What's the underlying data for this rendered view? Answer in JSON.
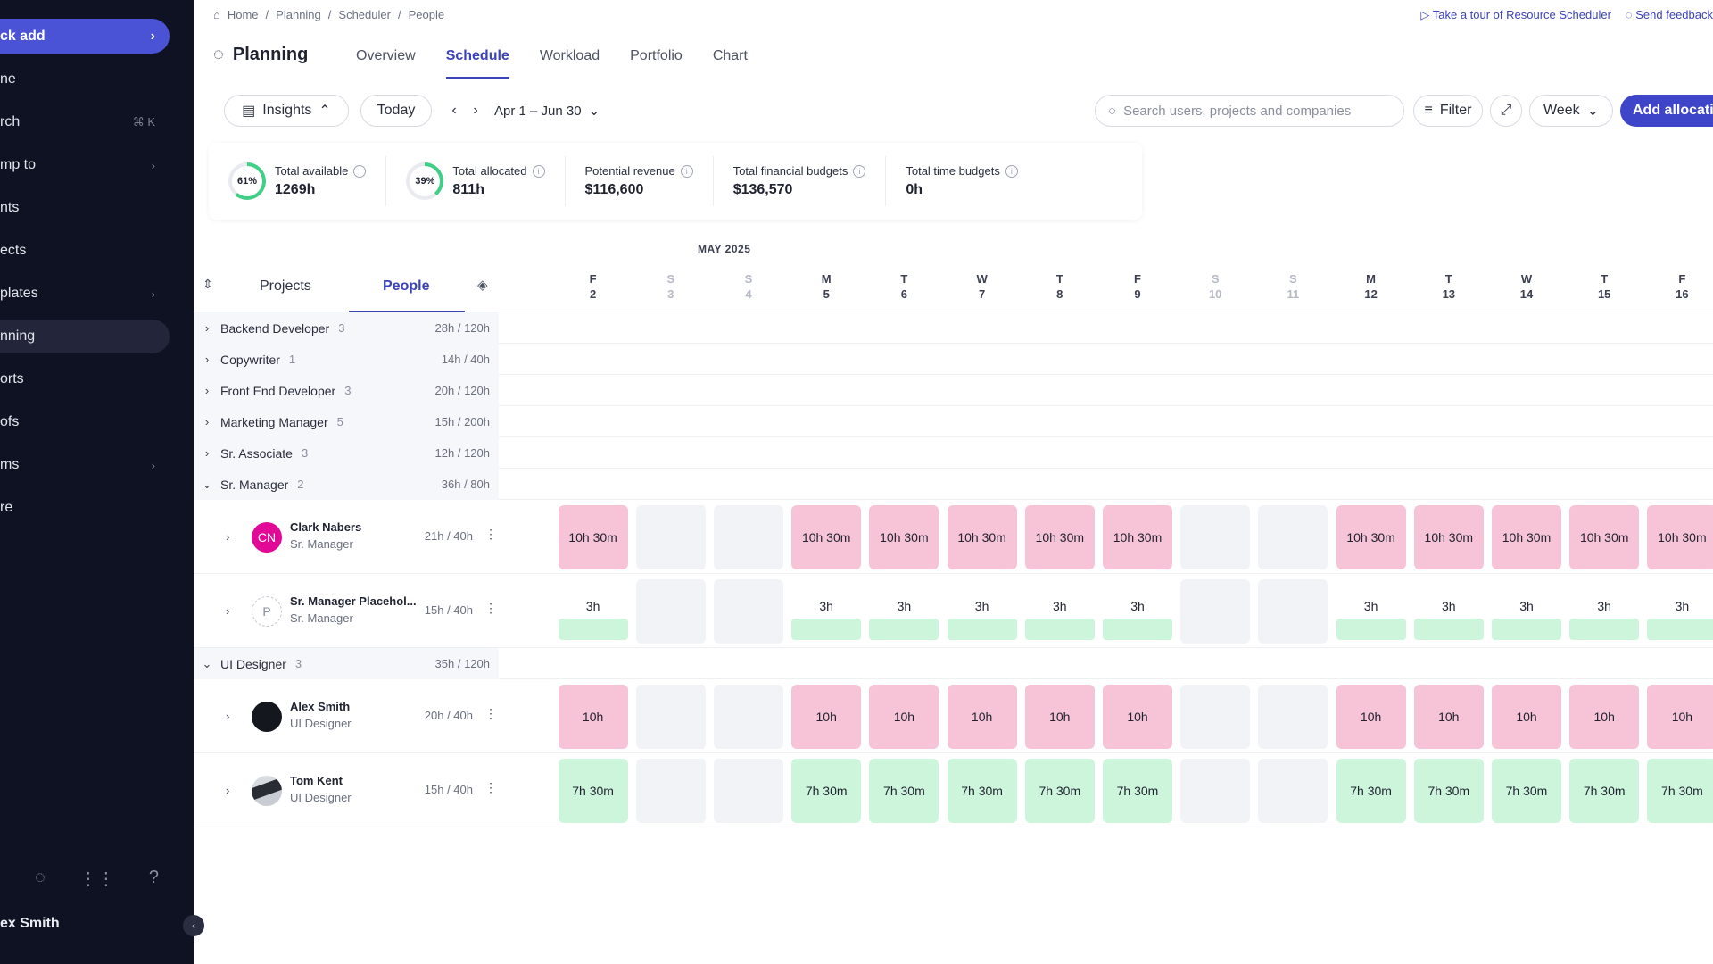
{
  "sidebar": {
    "quick_add": "ck add",
    "items": [
      {
        "label": "ne",
        "meta": ""
      },
      {
        "label": "rch",
        "meta": "⌘ K"
      },
      {
        "label": "mp to",
        "meta": "›"
      },
      {
        "label": "nts",
        "meta": ""
      },
      {
        "label": "ects",
        "meta": ""
      },
      {
        "label": "plates",
        "meta": "›"
      },
      {
        "label": "nning",
        "meta": "",
        "active": true
      },
      {
        "label": "orts",
        "meta": ""
      },
      {
        "label": "ofs",
        "meta": ""
      },
      {
        "label": "ms",
        "meta": "›"
      },
      {
        "label": "re",
        "meta": ""
      }
    ],
    "user": "ex Smith"
  },
  "breadcrumb": [
    "Home",
    "Planning",
    "Scheduler",
    "People"
  ],
  "top_links": {
    "tour": "Take a tour of Resource Scheduler",
    "feedback": "Send feedback"
  },
  "page_title": "Planning",
  "tabs": [
    "Overview",
    "Schedule",
    "Workload",
    "Portfolio",
    "Chart"
  ],
  "active_tab": "Schedule",
  "toolbar": {
    "insights": "Insights",
    "today": "Today",
    "range": "Apr 1 – Jun 30",
    "search_placeholder": "Search users, projects and companies",
    "filter": "Filter",
    "view": "Week",
    "add": "Add allocation"
  },
  "stats": [
    {
      "label": "Total available",
      "value": "1269h",
      "ring": "61%",
      "ring_fraction": 0.61
    },
    {
      "label": "Total allocated",
      "value": "811h",
      "ring": "39%",
      "ring_fraction": 0.39
    },
    {
      "label": "Potential revenue",
      "value": "$116,600"
    },
    {
      "label": "Total financial budgets",
      "value": "$136,570"
    },
    {
      "label": "Total time budgets",
      "value": "0h"
    }
  ],
  "month_label": "MAY 2025",
  "left_tabs": {
    "projects": "Projects",
    "people": "People"
  },
  "days": [
    {
      "dow": "F",
      "num": "2",
      "weekend": false
    },
    {
      "dow": "S",
      "num": "3",
      "weekend": true
    },
    {
      "dow": "S",
      "num": "4",
      "weekend": true
    },
    {
      "dow": "M",
      "num": "5",
      "weekend": false
    },
    {
      "dow": "T",
      "num": "6",
      "weekend": false
    },
    {
      "dow": "W",
      "num": "7",
      "weekend": false
    },
    {
      "dow": "T",
      "num": "8",
      "weekend": false
    },
    {
      "dow": "F",
      "num": "9",
      "weekend": false
    },
    {
      "dow": "S",
      "num": "10",
      "weekend": true
    },
    {
      "dow": "S",
      "num": "11",
      "weekend": true
    },
    {
      "dow": "M",
      "num": "12",
      "weekend": false
    },
    {
      "dow": "T",
      "num": "13",
      "weekend": false
    },
    {
      "dow": "W",
      "num": "14",
      "weekend": false
    },
    {
      "dow": "T",
      "num": "15",
      "weekend": false
    },
    {
      "dow": "F",
      "num": "16",
      "weekend": false
    }
  ],
  "groups": [
    {
      "name": "Backend Developer",
      "count": "3",
      "hours": "28h / 120h",
      "expanded": false
    },
    {
      "name": "Copywriter",
      "count": "1",
      "hours": "14h / 40h",
      "expanded": false
    },
    {
      "name": "Front End Developer",
      "count": "3",
      "hours": "20h / 120h",
      "expanded": false
    },
    {
      "name": "Marketing Manager",
      "count": "5",
      "hours": "15h / 200h",
      "expanded": false
    },
    {
      "name": "Sr. Associate",
      "count": "3",
      "hours": "12h / 120h",
      "expanded": false
    },
    {
      "name": "Sr. Manager",
      "count": "2",
      "hours": "36h / 80h",
      "expanded": true,
      "people": [
        {
          "name": "Clark Nabers",
          "role": "Sr. Manager",
          "hours": "21h / 40h",
          "initials": "CN",
          "avatar": "magenta",
          "alloc": "10h 30m",
          "style": "pink"
        },
        {
          "name": "Sr. Manager Placehol...",
          "role": "Sr. Manager",
          "hours": "15h / 40h",
          "initials": "P",
          "avatar": "placeholder",
          "alloc": "3h",
          "style": "placeholder"
        }
      ]
    },
    {
      "name": "UI Designer",
      "count": "3",
      "hours": "35h / 120h",
      "expanded": true,
      "people": [
        {
          "name": "Alex Smith",
          "role": "UI Designer",
          "hours": "20h / 40h",
          "initials": "",
          "avatar": "dark",
          "alloc": "10h",
          "style": "pink"
        },
        {
          "name": "Tom Kent",
          "role": "UI Designer",
          "hours": "15h / 40h",
          "initials": "",
          "avatar": "photo",
          "alloc": "7h 30m",
          "style": "green"
        }
      ]
    }
  ],
  "colors": {
    "accent": "#3e45c9",
    "over": "#f7c3d6",
    "under": "#cdf5dc",
    "sidebar": "#0f1222"
  }
}
